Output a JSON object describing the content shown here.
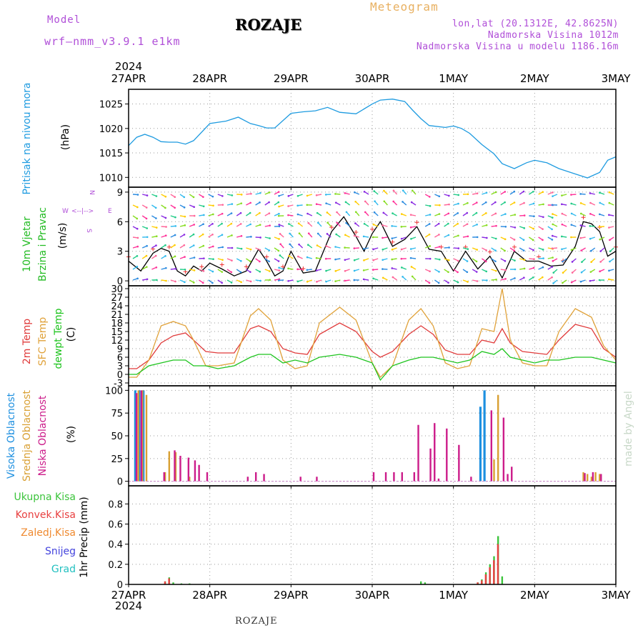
{
  "header": {
    "model_label": "Model",
    "model_version": "wrf—nmm_v3.9.1  e1km",
    "station": "ROZAJE",
    "meteogram_label": "Meteogram",
    "lonlat": "lon,lat (20.1312E, 42.8625N)",
    "altitude": "Nadmorska Visina 1012m",
    "model_altitude": "Nadmorska Visina u modelu 1186.16m"
  },
  "footer": {
    "station": "ROZAJE"
  },
  "watermark": "made by Angel",
  "colors": {
    "pressure": "#1e9be0",
    "wind_label": "#22bb22",
    "temp2m": "#e03b3b",
    "sfc": "#e0a23a",
    "dewpt": "#1ec41e",
    "high_cloud": "#1e90e0",
    "mid_cloud": "#d9a033",
    "low_cloud": "#cc1c8a",
    "total_precip": "#3cc43c",
    "conv_precip": "#e84040",
    "frozen_precip": "#ef8a30",
    "snow": "#4444dd",
    "hail": "#22c0c0"
  },
  "chart_data": [
    {
      "type": "line",
      "panel": "pressure",
      "ylabel_1": "Pritisak na nivou mora",
      "ylabel_2": "(hPa)",
      "x_top_year": "2024",
      "x_ticks": [
        "27APR",
        "28APR",
        "29APR",
        "30APR",
        "1MAY",
        "2MAY",
        "3MAY"
      ],
      "xlim_days": [
        0,
        6
      ],
      "ylim": [
        1008,
        1028
      ],
      "yticks": [
        1010,
        1015,
        1020,
        1025
      ],
      "grid": true,
      "series": [
        {
          "x": [
            0,
            0.1,
            0.2,
            0.3,
            0.4,
            0.5,
            0.6,
            0.7,
            0.8,
            1.0,
            1.2,
            1.35,
            1.5,
            1.6,
            1.7,
            1.8,
            2.0,
            2.15,
            2.3,
            2.45,
            2.6,
            2.8,
            3.0,
            3.1,
            3.25,
            3.4,
            3.5,
            3.6,
            3.7,
            3.9,
            4.0,
            4.1,
            4.2,
            4.35,
            4.5,
            4.6,
            4.75,
            4.9,
            5.0,
            5.15,
            5.3,
            5.5,
            5.65,
            5.8,
            5.9,
            6.0
          ],
          "values": [
            1016.5,
            1018.2,
            1018.8,
            1018.2,
            1017.3,
            1017.2,
            1017.2,
            1016.8,
            1017.5,
            1021.0,
            1021.5,
            1022.3,
            1021.0,
            1020.6,
            1020.1,
            1020.1,
            1023.1,
            1023.4,
            1023.6,
            1024.3,
            1023.3,
            1023.0,
            1025.0,
            1025.8,
            1026.0,
            1025.5,
            1023.7,
            1022.0,
            1020.6,
            1020.2,
            1020.5,
            1020.0,
            1019.0,
            1016.7,
            1014.8,
            1012.8,
            1011.8,
            1013.0,
            1013.5,
            1013.0,
            1011.8,
            1010.7,
            1009.9,
            1011.0,
            1013.5,
            1014.2
          ]
        }
      ]
    },
    {
      "type": "line",
      "panel": "wind",
      "ylabel_1": "10m Vjetar",
      "ylabel_2": "Brzina i Pravac",
      "ylabel_3": "(m/s)",
      "compass": {
        "n": "N",
        "w": "W",
        "e": "E",
        "s": "S"
      },
      "ylim": [
        -0.5,
        9.5
      ],
      "yticks": [
        0,
        3,
        6,
        9
      ],
      "grid": true,
      "series": [
        {
          "x": [
            0,
            0.15,
            0.3,
            0.4,
            0.5,
            0.6,
            0.7,
            0.8,
            0.9,
            1.0,
            1.15,
            1.3,
            1.45,
            1.6,
            1.7,
            1.8,
            1.9,
            2.0,
            2.15,
            2.3,
            2.5,
            2.65,
            2.8,
            2.9,
            3.0,
            3.1,
            3.25,
            3.4,
            3.55,
            3.7,
            3.85,
            4.0,
            4.15,
            4.3,
            4.45,
            4.6,
            4.75,
            4.9,
            5.05,
            5.2,
            5.35,
            5.5,
            5.6,
            5.7,
            5.8,
            5.9,
            6.0
          ],
          "values": [
            2.0,
            1.0,
            2.8,
            3.3,
            3.0,
            1.0,
            0.5,
            1.5,
            1.0,
            1.8,
            1.2,
            0.5,
            1.0,
            3.2,
            2.0,
            0.5,
            1.0,
            3.0,
            0.8,
            1.0,
            5.0,
            6.5,
            4.5,
            3.0,
            4.8,
            6.0,
            3.5,
            4.2,
            5.5,
            3.2,
            3.0,
            1.0,
            3.0,
            1.2,
            2.5,
            0.3,
            3.0,
            2.0,
            2.0,
            1.5,
            1.6,
            3.5,
            6.0,
            5.8,
            5.0,
            2.5,
            3.0
          ]
        }
      ]
    },
    {
      "type": "line",
      "panel": "temperature",
      "ylabel_1": "2m Temp",
      "ylabel_2": "SFC Temp",
      "ylabel_3": "dewpt Temp",
      "ylabel_4": "(C)",
      "ylim": [
        -4,
        31
      ],
      "yticks": [
        -3,
        0,
        3,
        6,
        9,
        12,
        15,
        18,
        21,
        24,
        27,
        30
      ],
      "grid": true,
      "series": [
        {
          "name": "2m Temp",
          "x": [
            0,
            0.1,
            0.25,
            0.4,
            0.55,
            0.7,
            0.8,
            0.95,
            1.1,
            1.3,
            1.5,
            1.6,
            1.75,
            1.9,
            2.05,
            2.2,
            2.35,
            2.6,
            2.8,
            3.0,
            3.1,
            3.25,
            3.45,
            3.6,
            3.75,
            3.9,
            4.05,
            4.2,
            4.35,
            4.5,
            4.6,
            4.7,
            4.85,
            5.0,
            5.15,
            5.3,
            5.5,
            5.7,
            5.85,
            6.0
          ],
          "values": [
            2,
            2,
            5,
            11,
            13.5,
            14.5,
            12,
            8,
            7.5,
            7.5,
            16,
            17,
            15,
            9,
            7.5,
            7,
            14,
            18,
            15,
            8,
            6,
            8,
            14,
            17,
            14,
            8.5,
            7,
            7,
            12,
            11,
            16,
            11,
            8,
            7.5,
            7,
            12,
            17.5,
            16,
            9,
            6
          ]
        },
        {
          "name": "SFC Temp",
          "x": [
            0,
            0.1,
            0.25,
            0.4,
            0.55,
            0.7,
            0.8,
            0.95,
            1.1,
            1.3,
            1.5,
            1.6,
            1.75,
            1.9,
            2.05,
            2.2,
            2.35,
            2.6,
            2.8,
            3.0,
            3.1,
            3.25,
            3.45,
            3.6,
            3.75,
            3.9,
            4.05,
            4.2,
            4.35,
            4.5,
            4.6,
            4.7,
            4.85,
            5.0,
            5.15,
            5.3,
            5.5,
            5.7,
            5.85,
            6.0
          ],
          "values": [
            -1,
            -1,
            5,
            17,
            18.5,
            17,
            12,
            3,
            3,
            4,
            20.5,
            23,
            19,
            5,
            2,
            3,
            18,
            23.5,
            19,
            4,
            -1,
            3,
            19,
            23,
            17,
            4,
            2,
            3,
            16,
            15,
            30,
            12,
            4,
            3,
            3,
            15,
            23,
            20,
            10,
            5
          ]
        },
        {
          "name": "dewpt Temp",
          "x": [
            0,
            0.1,
            0.25,
            0.4,
            0.55,
            0.7,
            0.8,
            0.95,
            1.1,
            1.3,
            1.5,
            1.6,
            1.75,
            1.9,
            2.05,
            2.2,
            2.35,
            2.6,
            2.8,
            3.0,
            3.1,
            3.25,
            3.45,
            3.6,
            3.75,
            3.9,
            4.05,
            4.2,
            4.35,
            4.5,
            4.6,
            4.7,
            4.85,
            5.0,
            5.15,
            5.3,
            5.5,
            5.7,
            5.85,
            6.0
          ],
          "values": [
            0,
            0,
            3,
            4,
            5,
            5,
            3,
            3,
            2,
            3,
            6,
            7,
            7,
            4,
            5,
            4,
            6,
            7,
            6,
            4,
            -2,
            3,
            5,
            6,
            6,
            5,
            4,
            5,
            8,
            7,
            9,
            6,
            5,
            4,
            5,
            5,
            6,
            6,
            5,
            4
          ]
        }
      ]
    },
    {
      "type": "bar",
      "panel": "cloud",
      "ylabel_1": "Visoka Oblacnost",
      "ylabel_2": "Srednja Oblacnost",
      "ylabel_3": "Niska Oblacnost",
      "ylabel_4": "(%)",
      "ylim": [
        -5,
        105
      ],
      "yticks": [
        0,
        25,
        50,
        75,
        100
      ],
      "grid": true,
      "series": [
        {
          "name": "Visoka Oblacnost",
          "x": [
            0.1,
            0.15,
            0.2,
            4.35,
            4.4
          ],
          "values": [
            100,
            100,
            100,
            82,
            100
          ]
        },
        {
          "name": "Srednja Oblacnost",
          "x": [
            0.12,
            0.17,
            0.22,
            0.45,
            0.5,
            0.58,
            0.75,
            4.5,
            4.55,
            5.6,
            5.65,
            5.7,
            5.75,
            5.8
          ],
          "values": [
            100,
            100,
            95,
            10,
            33,
            32,
            5,
            24,
            95,
            10,
            8,
            5,
            10,
            8
          ]
        },
        {
          "name": "Niska Oblacnost",
          "x": [
            0.08,
            0.14,
            0.42,
            0.55,
            0.62,
            0.72,
            0.8,
            0.85,
            0.95,
            1.45,
            1.55,
            1.65,
            2.1,
            2.3,
            3.0,
            3.15,
            3.25,
            3.35,
            3.5,
            3.55,
            3.7,
            3.75,
            3.8,
            3.9,
            4.05,
            4.2,
            4.45,
            4.6,
            4.65,
            4.7,
            5.6,
            5.7,
            5.8
          ],
          "values": [
            97,
            100,
            10,
            34,
            28,
            26,
            23,
            18,
            10,
            5,
            10,
            8,
            5,
            5,
            10,
            10,
            10,
            10,
            10,
            62,
            36,
            64,
            3,
            58,
            40,
            5,
            78,
            70,
            8,
            16,
            9,
            10,
            8
          ]
        }
      ]
    },
    {
      "type": "bar",
      "panel": "precip",
      "ylabel_1": "Ukupna Kisa",
      "ylabel_2": "Konvek.Kisa",
      "ylabel_3": "Zaledj.Kisa",
      "ylabel_4": "Snijeg",
      "ylabel_5": "Grad",
      "ylabel_6": "1hr Precip (mm)",
      "x_bottom_year": "2024",
      "ylim": [
        0,
        0.98
      ],
      "yticks": [
        0,
        0.2,
        0.4,
        0.6,
        0.8
      ],
      "yticklabels": [
        "0",
        "0.2",
        "0.4",
        "0.6",
        "0.8"
      ],
      "grid": true,
      "series": [
        {
          "name": "Ukupna Kisa",
          "x": [
            0.45,
            0.5,
            0.55,
            0.65,
            0.75,
            3.6,
            3.65,
            4.3,
            4.35,
            4.4,
            4.45,
            4.5,
            4.55,
            4.6
          ],
          "values": [
            0.03,
            0.07,
            0.02,
            0.01,
            0.01,
            0.03,
            0.02,
            0.02,
            0.05,
            0.12,
            0.2,
            0.28,
            0.48,
            0.08
          ]
        },
        {
          "name": "Konvek.Kisa",
          "x": [
            0.47,
            0.52,
            4.32,
            4.37,
            4.42,
            4.47,
            4.52,
            4.57
          ],
          "values": [
            0.03,
            0.06,
            0.02,
            0.04,
            0.1,
            0.17,
            0.24,
            0.4
          ]
        }
      ]
    }
  ]
}
